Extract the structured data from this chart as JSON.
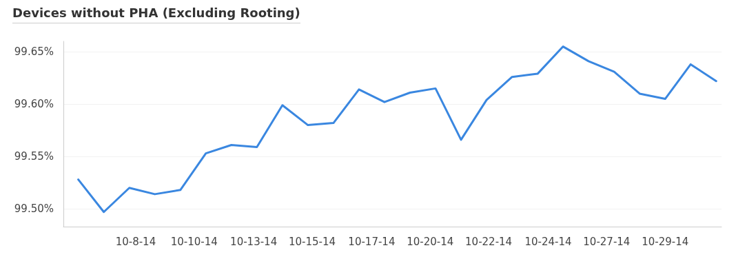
{
  "chart_data": {
    "type": "line",
    "title": "Devices without PHA (Excluding Rooting)",
    "x": [
      "--10-06",
      "--10-07",
      "--10-08",
      "--10-09",
      "--10-10",
      "--10-11",
      "--10-12",
      "--10-13",
      "--10-14",
      "--10-15",
      "--10-16",
      "--10-17",
      "--10-18",
      "--10-19",
      "--10-20",
      "--10-21",
      "--10-22",
      "--10-23",
      "--10-24",
      "--10-25",
      "--10-26",
      "--10-27",
      "--10-28",
      "--10-29",
      "--10-30",
      "--10-31"
    ],
    "series": [
      {
        "color": "#3a87e0",
        "values": [
          99.528,
          99.497,
          99.52,
          99.514,
          99.518,
          99.553,
          99.561,
          99.559,
          99.599,
          99.58,
          99.582,
          99.614,
          99.602,
          99.611,
          99.615,
          99.566,
          99.604,
          99.626,
          99.629,
          99.655,
          99.641,
          99.631,
          99.61,
          99.605,
          99.638,
          99.622
        ]
      }
    ],
    "xlim": [
      "--10-05T10:00",
      "--10-31T05:00"
    ],
    "xticks": [
      {
        "value": "--10-08T06:00",
        "label": "10-8-14"
      },
      {
        "value": "--10-10T13:00",
        "label": "10-10-14"
      },
      {
        "value": "--10-12T21:00",
        "label": "10-13-14"
      },
      {
        "value": "--10-15T04:00",
        "label": "10-15-14"
      },
      {
        "value": "--10-17T12:00",
        "label": "10-17-14"
      },
      {
        "value": "--10-19T19:00",
        "label": "10-20-14"
      },
      {
        "value": "--10-22T02:00",
        "label": "10-22-14"
      },
      {
        "value": "--10-24T10:00",
        "label": "10-24-14"
      },
      {
        "value": "--10-26T17:00",
        "label": "10-27-14"
      },
      {
        "value": "--10-29T00:00",
        "label": "10-29-14"
      }
    ],
    "ylim": [
      99.483,
      99.66
    ],
    "yticks": [
      {
        "value": 99.5,
        "label": "99.50%"
      },
      {
        "value": 99.55,
        "label": "99.55%"
      },
      {
        "value": 99.6,
        "label": "99.60%"
      },
      {
        "value": 99.65,
        "label": "99.65%"
      }
    ],
    "grid": "y",
    "marker": "none",
    "line_style": "solid"
  }
}
